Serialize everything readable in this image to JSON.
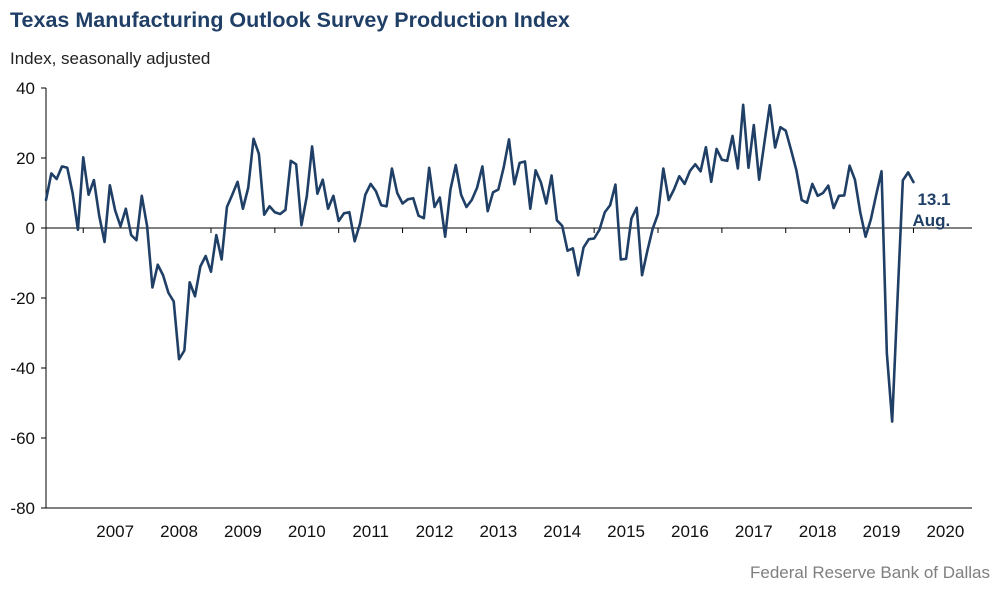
{
  "title": "Texas Manufacturing Outlook Survey Production Index",
  "subtitle": "Index, seasonally adjusted",
  "source": "Federal Reserve Bank of Dallas",
  "line_color": "#1f3f66",
  "chart_data": {
    "type": "line",
    "title": "Texas Manufacturing Outlook Survey Production Index",
    "ylabel": "Index, seasonally adjusted",
    "xlabel": "",
    "ylim": [
      -80,
      40
    ],
    "yticks": [
      40,
      20,
      0,
      -20,
      -40,
      -60,
      -80
    ],
    "xlim": [
      "2006-06",
      "2020-12"
    ],
    "year_labels": [
      "2007",
      "2008",
      "2009",
      "2010",
      "2011",
      "2012",
      "2013",
      "2014",
      "2015",
      "2016",
      "2017",
      "2018",
      "2019",
      "2020"
    ],
    "grid": false,
    "legend": "none",
    "annotation": {
      "value": "13.1",
      "period": "Aug."
    },
    "series": [
      {
        "start": "2006-06",
        "frequency": "monthly",
        "values": [
          8,
          15.6,
          14,
          17.6,
          17.2,
          10,
          -0.5,
          20.2,
          9.5,
          13.7,
          3.5,
          -4,
          12.2,
          5,
          0.5,
          5.5,
          -2,
          -3.5,
          9.2,
          0.5,
          -17,
          -10.5,
          -13.5,
          -18.5,
          -21,
          -37.5,
          -35,
          -15.5,
          -19.5,
          -11,
          -8,
          -12.5,
          -2,
          -9,
          6,
          9.5,
          13.2,
          5.5,
          11.5,
          25.5,
          21.2,
          3.8,
          6.2,
          4.5,
          4,
          5.2,
          19.2,
          18.2,
          0.8,
          9,
          23.3,
          9.8,
          13.8,
          5.5,
          9.2,
          2,
          4.2,
          4.5,
          -3.8,
          1.2,
          9.5,
          12.6,
          10.5,
          6.5,
          6.2,
          17,
          10,
          7,
          8.2,
          8.5,
          3.5,
          2.8,
          17.2,
          6,
          8.7,
          -2.5,
          11,
          18,
          9.5,
          6,
          8,
          11.5,
          17.6,
          4.8,
          10.2,
          11,
          17.3,
          25.3,
          12.5,
          18.6,
          19,
          5.5,
          16.5,
          13,
          7,
          15,
          2.2,
          0.6,
          -6.5,
          -5.8,
          -13.5,
          -5.6,
          -3.2,
          -3,
          -0.5,
          4.5,
          6.5,
          12.4,
          -9,
          -8.8,
          2.7,
          5.8,
          -13.5,
          -6.5,
          -0.2,
          4,
          17,
          8,
          11,
          14.8,
          12.6,
          16.3,
          18.2,
          16.2,
          23.1,
          13.2,
          22.6,
          19.5,
          19.2,
          26.3,
          17,
          35.2,
          17.2,
          29.4,
          13.8,
          24.5,
          35.1,
          23,
          28.8,
          27.8,
          22.3,
          16.5,
          8,
          7.2,
          12.6,
          9.2,
          10,
          12.1,
          5.7,
          9.2,
          9.3,
          17.8,
          13.8,
          4.5,
          -2.5,
          2.5,
          9.5,
          16.2,
          -35.8,
          -55.3,
          -20.5,
          13.6,
          15.9,
          13.1
        ]
      }
    ]
  }
}
